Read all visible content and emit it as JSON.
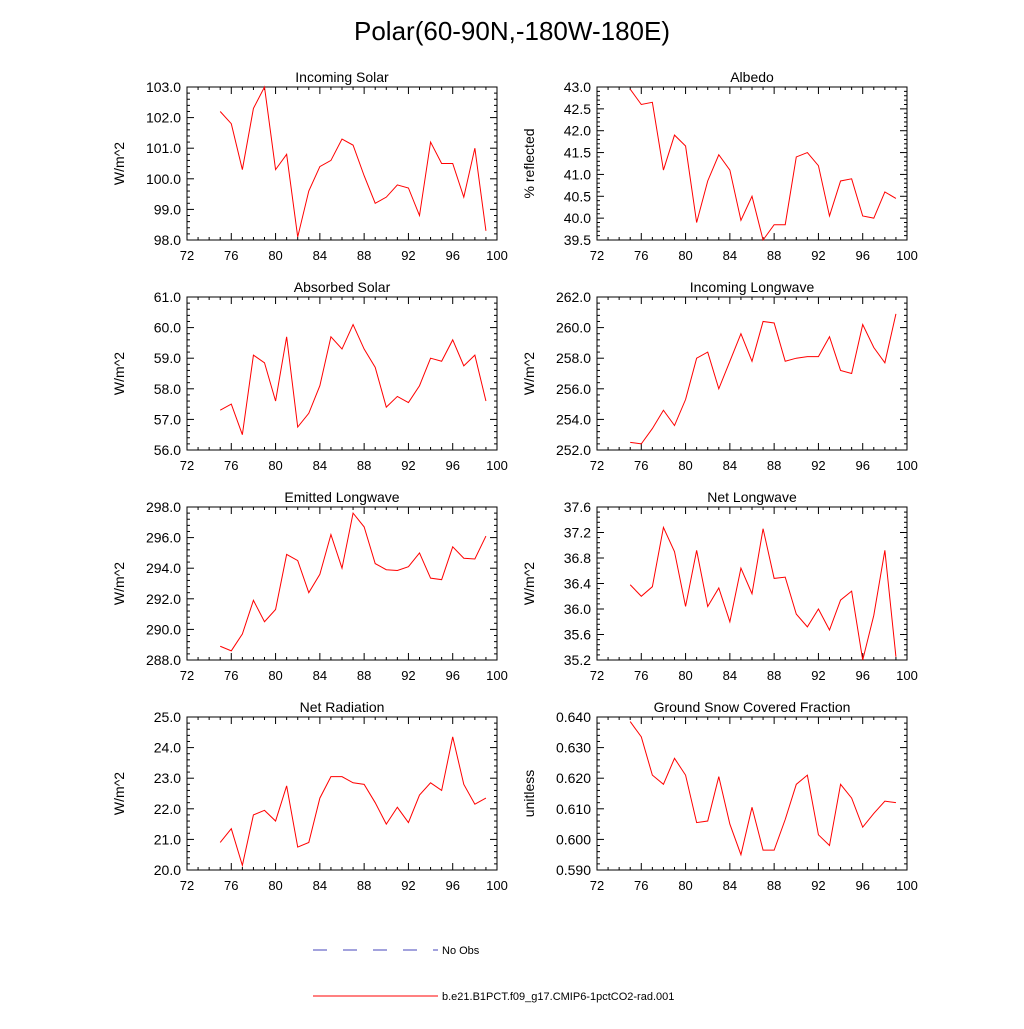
{
  "page": {
    "title": "Polar(60-90N,-180W-180E)"
  },
  "legend": [
    {
      "label": "No Obs",
      "color": "#4444bb",
      "style": "dashed"
    },
    {
      "label": "b.e21.B1PCT.f09_g17.CMIP6-1pctCO2-rad.001",
      "color": "#ff0000",
      "style": "solid"
    }
  ],
  "chart_data": [
    {
      "type": "line",
      "title": "Incoming Solar",
      "ylabel": "W/m^2",
      "xlim": [
        72,
        100
      ],
      "ylim": [
        98.0,
        103.0
      ],
      "xticks": [
        "72",
        "76",
        "80",
        "84",
        "88",
        "92",
        "96",
        "100"
      ],
      "yticks": [
        "98.0",
        "99.0",
        "100.0",
        "101.0",
        "102.0",
        "103.0"
      ],
      "x": [
        75,
        76,
        77,
        78,
        79,
        80,
        81,
        82,
        83,
        84,
        85,
        86,
        87,
        88,
        89,
        90,
        91,
        92,
        93,
        94,
        95,
        96,
        97,
        98,
        99
      ],
      "series": [
        {
          "color": "#ff0000",
          "values": [
            102.2,
            101.8,
            100.3,
            102.3,
            103.0,
            100.3,
            100.8,
            98.1,
            99.6,
            100.4,
            100.6,
            101.3,
            101.1,
            100.1,
            99.2,
            99.4,
            99.8,
            99.7,
            98.8,
            101.2,
            100.5,
            100.5,
            99.4,
            101.0,
            98.3
          ]
        }
      ]
    },
    {
      "type": "line",
      "title": "Albedo",
      "ylabel": "% reflected",
      "xlim": [
        72,
        100
      ],
      "ylim": [
        39.5,
        43.0
      ],
      "xticks": [
        "72",
        "76",
        "80",
        "84",
        "88",
        "92",
        "96",
        "100"
      ],
      "yticks": [
        "39.5",
        "40.0",
        "40.5",
        "41.0",
        "41.5",
        "42.0",
        "42.5",
        "43.0"
      ],
      "x": [
        75,
        76,
        77,
        78,
        79,
        80,
        81,
        82,
        83,
        84,
        85,
        86,
        87,
        88,
        89,
        90,
        91,
        92,
        93,
        94,
        95,
        96,
        97,
        98,
        99
      ],
      "series": [
        {
          "color": "#ff0000",
          "values": [
            42.95,
            42.6,
            42.65,
            41.1,
            41.9,
            41.65,
            39.9,
            40.85,
            41.45,
            41.1,
            39.95,
            40.5,
            39.5,
            39.85,
            39.85,
            41.4,
            41.5,
            41.2,
            40.05,
            40.85,
            40.9,
            40.05,
            40.0,
            40.6,
            40.45
          ]
        }
      ]
    },
    {
      "type": "line",
      "title": "Absorbed Solar",
      "ylabel": "W/m^2",
      "xlim": [
        72,
        100
      ],
      "ylim": [
        56.0,
        61.0
      ],
      "xticks": [
        "72",
        "76",
        "80",
        "84",
        "88",
        "92",
        "96",
        "100"
      ],
      "yticks": [
        "56.0",
        "57.0",
        "58.0",
        "59.0",
        "60.0",
        "61.0"
      ],
      "x": [
        75,
        76,
        77,
        78,
        79,
        80,
        81,
        82,
        83,
        84,
        85,
        86,
        87,
        88,
        89,
        90,
        91,
        92,
        93,
        94,
        95,
        96,
        97,
        98,
        99
      ],
      "series": [
        {
          "color": "#ff0000",
          "values": [
            57.3,
            57.5,
            56.5,
            59.1,
            58.85,
            57.6,
            59.7,
            56.75,
            57.2,
            58.1,
            59.7,
            59.3,
            60.1,
            59.3,
            58.7,
            57.4,
            57.75,
            57.55,
            58.1,
            59.0,
            58.9,
            59.6,
            58.75,
            59.1,
            57.6
          ]
        }
      ]
    },
    {
      "type": "line",
      "title": "Incoming Longwave",
      "ylabel": "W/m^2",
      "xlim": [
        72,
        100
      ],
      "ylim": [
        252.0,
        262.0
      ],
      "xticks": [
        "72",
        "76",
        "80",
        "84",
        "88",
        "92",
        "96",
        "100"
      ],
      "yticks": [
        "252.0",
        "254.0",
        "256.0",
        "258.0",
        "260.0",
        "262.0"
      ],
      "x": [
        75,
        76,
        77,
        78,
        79,
        80,
        81,
        82,
        83,
        84,
        85,
        86,
        87,
        88,
        89,
        90,
        91,
        92,
        93,
        94,
        95,
        96,
        97,
        98,
        99
      ],
      "series": [
        {
          "color": "#ff0000",
          "values": [
            252.5,
            252.4,
            253.4,
            254.6,
            253.6,
            255.3,
            258.0,
            258.4,
            256.0,
            257.8,
            259.6,
            257.8,
            260.4,
            260.3,
            257.8,
            258.0,
            258.1,
            258.1,
            259.4,
            257.2,
            257.0,
            260.2,
            258.7,
            257.7,
            260.9
          ]
        }
      ]
    },
    {
      "type": "line",
      "title": "Emitted Longwave",
      "ylabel": "W/m^2",
      "xlim": [
        72,
        100
      ],
      "ylim": [
        288.0,
        298.0
      ],
      "xticks": [
        "72",
        "76",
        "80",
        "84",
        "88",
        "92",
        "96",
        "100"
      ],
      "yticks": [
        "288.0",
        "290.0",
        "292.0",
        "294.0",
        "296.0",
        "298.0"
      ],
      "x": [
        75,
        76,
        77,
        78,
        79,
        80,
        81,
        82,
        83,
        84,
        85,
        86,
        87,
        88,
        89,
        90,
        91,
        92,
        93,
        94,
        95,
        96,
        97,
        98,
        99
      ],
      "series": [
        {
          "color": "#ff0000",
          "values": [
            288.9,
            288.6,
            289.7,
            291.9,
            290.5,
            291.3,
            294.9,
            294.5,
            292.4,
            293.6,
            296.2,
            294.0,
            297.6,
            296.7,
            294.3,
            293.9,
            293.85,
            294.1,
            295.0,
            293.35,
            293.25,
            295.4,
            294.65,
            294.6,
            296.1
          ]
        }
      ]
    },
    {
      "type": "line",
      "title": "Net Longwave",
      "ylabel": "W/m^2",
      "xlim": [
        72,
        100
      ],
      "ylim": [
        35.2,
        37.6
      ],
      "xticks": [
        "72",
        "76",
        "80",
        "84",
        "88",
        "92",
        "96",
        "100"
      ],
      "yticks": [
        "35.2",
        "35.6",
        "36.0",
        "36.4",
        "36.8",
        "37.2",
        "37.6"
      ],
      "x": [
        75,
        76,
        77,
        78,
        79,
        80,
        81,
        82,
        83,
        84,
        85,
        86,
        87,
        88,
        89,
        90,
        91,
        92,
        93,
        94,
        95,
        96,
        97,
        98,
        99
      ],
      "series": [
        {
          "color": "#ff0000",
          "values": [
            36.38,
            36.2,
            36.35,
            37.28,
            36.9,
            36.04,
            36.92,
            36.04,
            36.33,
            35.8,
            36.64,
            36.24,
            37.26,
            36.48,
            36.5,
            35.92,
            35.72,
            36.0,
            35.67,
            36.14,
            36.28,
            35.2,
            35.9,
            36.92,
            35.25
          ]
        }
      ]
    },
    {
      "type": "line",
      "title": "Net Radiation",
      "ylabel": "W/m^2",
      "xlim": [
        72,
        100
      ],
      "ylim": [
        20.0,
        25.0
      ],
      "xticks": [
        "72",
        "76",
        "80",
        "84",
        "88",
        "92",
        "96",
        "100"
      ],
      "yticks": [
        "20.0",
        "21.0",
        "22.0",
        "23.0",
        "24.0",
        "25.0"
      ],
      "x": [
        75,
        76,
        77,
        78,
        79,
        80,
        81,
        82,
        83,
        84,
        85,
        86,
        87,
        88,
        89,
        90,
        91,
        92,
        93,
        94,
        95,
        96,
        97,
        98,
        99
      ],
      "series": [
        {
          "color": "#ff0000",
          "values": [
            20.9,
            21.35,
            20.15,
            21.8,
            21.95,
            21.6,
            22.75,
            20.75,
            20.9,
            22.35,
            23.05,
            23.05,
            22.85,
            22.8,
            22.2,
            21.5,
            22.05,
            21.55,
            22.45,
            22.85,
            22.6,
            24.35,
            22.8,
            22.15,
            22.35
          ]
        }
      ]
    },
    {
      "type": "line",
      "title": "Ground Snow Covered Fraction",
      "ylabel": "unitless",
      "xlim": [
        72,
        100
      ],
      "ylim": [
        0.59,
        0.64
      ],
      "xticks": [
        "72",
        "76",
        "80",
        "84",
        "88",
        "92",
        "96",
        "100"
      ],
      "yticks": [
        "0.590",
        "0.600",
        "0.610",
        "0.620",
        "0.630",
        "0.640"
      ],
      "x": [
        75,
        76,
        77,
        78,
        79,
        80,
        81,
        82,
        83,
        84,
        85,
        86,
        87,
        88,
        89,
        90,
        91,
        92,
        93,
        94,
        95,
        96,
        97,
        98,
        99
      ],
      "series": [
        {
          "color": "#ff0000",
          "values": [
            0.6385,
            0.6335,
            0.621,
            0.618,
            0.6265,
            0.621,
            0.6055,
            0.606,
            0.6205,
            0.605,
            0.595,
            0.6105,
            0.5965,
            0.5965,
            0.6065,
            0.618,
            0.621,
            0.6015,
            0.598,
            0.618,
            0.6135,
            0.604,
            0.6085,
            0.6125,
            0.612
          ]
        }
      ]
    }
  ]
}
